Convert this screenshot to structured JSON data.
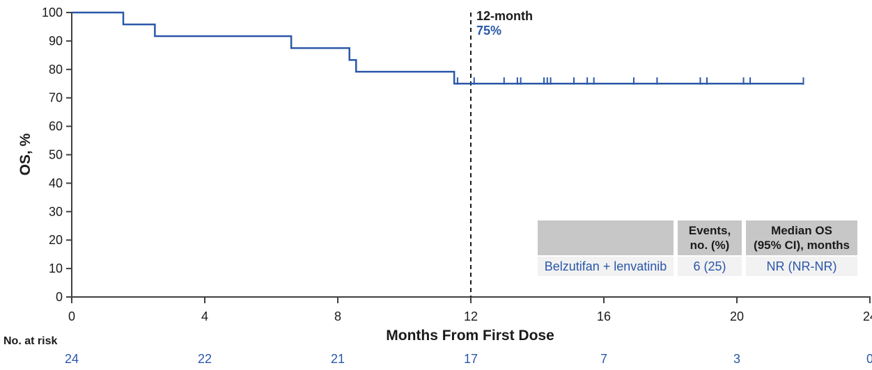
{
  "colors": {
    "accent_blue": "#2a57a8",
    "axis": "#404040",
    "text": "#1a1a1a",
    "table_header_bg": "#c7c7c7",
    "table_row_bg": "#f2f2f2"
  },
  "chart_data": {
    "type": "line",
    "subtype": "kaplan-meier-step",
    "title": "",
    "xlabel": "Months From First Dose",
    "ylabel": "OS, %",
    "xlim": [
      0,
      24
    ],
    "ylim": [
      0,
      100
    ],
    "xticks": [
      "0",
      "4",
      "8",
      "12",
      "16",
      "20",
      "24"
    ],
    "xtick_months": [
      0,
      4,
      8,
      12,
      16,
      20,
      24
    ],
    "yticks": [
      "0",
      "10",
      "20",
      "30",
      "40",
      "50",
      "60",
      "70",
      "80",
      "90",
      "100"
    ],
    "ytick_values": [
      0,
      10,
      20,
      30,
      40,
      50,
      60,
      70,
      80,
      90,
      100
    ],
    "grid": false,
    "legend": "none",
    "annotation": {
      "x_month": 12,
      "line_style": "dashed",
      "label": "12-month",
      "value": "75%"
    },
    "series": [
      {
        "name": "Belzutifan + lenvatinib",
        "color": "#2a57a8",
        "steps": [
          {
            "month": 0,
            "pct": 100
          },
          {
            "month": 1.55,
            "pct": 95.8
          },
          {
            "month": 2.5,
            "pct": 91.7
          },
          {
            "month": 6.6,
            "pct": 87.5
          },
          {
            "month": 8.35,
            "pct": 83.3
          },
          {
            "month": 8.55,
            "pct": 79.2
          },
          {
            "month": 11.5,
            "pct": 75.0
          }
        ],
        "end_month": 22.0,
        "censor_months": [
          11.6,
          12.1,
          13.0,
          13.4,
          13.5,
          14.2,
          14.3,
          14.4,
          15.1,
          15.5,
          15.7,
          16.9,
          17.6,
          18.9,
          19.1,
          20.2,
          20.4,
          22.0
        ]
      }
    ]
  },
  "risk_table": {
    "label": "No. at risk",
    "months": [
      0,
      4,
      8,
      12,
      16,
      20,
      24
    ],
    "values": [
      "24",
      "22",
      "21",
      "17",
      "7",
      "3",
      "0"
    ]
  },
  "summary_table": {
    "headers": {
      "group": "",
      "events": [
        "Events,",
        "no. (%)"
      ],
      "median": [
        "Median OS",
        "(95% CI), months"
      ]
    },
    "rows": [
      {
        "group": "Belzutifan + lenvatinib",
        "events": "6 (25)",
        "median": "NR (NR-NR)"
      }
    ]
  }
}
